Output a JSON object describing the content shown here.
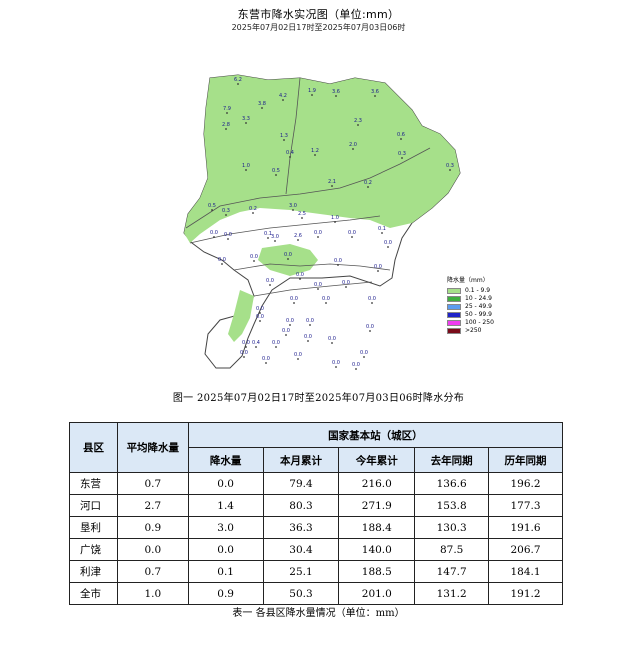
{
  "map": {
    "title": "东营市降水实况图（单位:mm）",
    "subtitle": "2025年07月02日17时至2025年07月03日06时",
    "legend_title": "降水量（mm）",
    "legend": [
      {
        "label": "0.1 - 9.9",
        "color": "#a6e08a"
      },
      {
        "label": "10 - 24.9",
        "color": "#3fae3f"
      },
      {
        "label": "25 - 49.9",
        "color": "#5d9cf0"
      },
      {
        "label": "50 - 99.9",
        "color": "#1f23c8"
      },
      {
        "label": "100 - 250",
        "color": "#f03cf0"
      },
      {
        "label": ">250",
        "color": "#7a0b1a"
      }
    ],
    "stations": [
      {
        "v": "6.2",
        "c": "#d62020"
      },
      {
        "v": "1.9"
      },
      {
        "v": "3.6"
      },
      {
        "v": "3.8"
      },
      {
        "v": "4.2",
        "c": "#d62020"
      },
      {
        "v": "3.6"
      },
      {
        "v": "7.9"
      },
      {
        "v": "3.3"
      },
      {
        "v": "2.8"
      },
      {
        "v": "2.3"
      },
      {
        "v": "0.6"
      },
      {
        "v": "1.3"
      },
      {
        "v": "2.0"
      },
      {
        "v": "0.4"
      },
      {
        "v": "1.2"
      },
      {
        "v": "0.3"
      },
      {
        "v": "1.0"
      },
      {
        "v": "0.5"
      },
      {
        "v": "2.1"
      },
      {
        "v": "0.2"
      },
      {
        "v": "0.3"
      },
      {
        "v": "0.5"
      },
      {
        "v": "0.3"
      },
      {
        "v": "0.2"
      },
      {
        "v": "3.0"
      },
      {
        "v": "2.5"
      },
      {
        "v": "1.0"
      },
      {
        "v": "0.0"
      },
      {
        "v": "0.0"
      },
      {
        "v": "0.1"
      },
      {
        "v": "0.0"
      },
      {
        "v": "0.0"
      },
      {
        "v": "0.1"
      },
      {
        "v": "3.0"
      },
      {
        "v": "2.6"
      },
      {
        "v": "0.0"
      },
      {
        "v": "0.0"
      },
      {
        "v": "0.0"
      },
      {
        "v": "0.0"
      },
      {
        "v": "0.0"
      },
      {
        "v": "0.0"
      },
      {
        "v": "0.0"
      },
      {
        "v": "0.0"
      },
      {
        "v": "0.0"
      },
      {
        "v": "0.0"
      },
      {
        "v": "0.0"
      },
      {
        "v": "0.0"
      },
      {
        "v": "0.0"
      },
      {
        "v": "0.0"
      },
      {
        "v": "0.0"
      },
      {
        "v": "0.0"
      },
      {
        "v": "0.0"
      },
      {
        "v": "0.0"
      },
      {
        "v": "0.4"
      },
      {
        "v": "0.0"
      },
      {
        "v": "0.0"
      },
      {
        "v": "0.0"
      },
      {
        "v": "0.0"
      },
      {
        "v": "0.0"
      },
      {
        "v": "0.0"
      },
      {
        "v": "0.0"
      },
      {
        "v": "0.0"
      },
      {
        "v": "0.0"
      },
      {
        "v": "0.0"
      },
      {
        "v": "0.0"
      }
    ]
  },
  "figure_caption": "图一 2025年07月02日17时至2025年07月03日06时降水分布",
  "table": {
    "headers": {
      "county": "县区",
      "avg": "平均降水量",
      "group": "国家基本站（城区）",
      "cols": [
        "降水量",
        "本月累计",
        "今年累计",
        "去年同期",
        "历年同期"
      ]
    },
    "rows": [
      [
        "东营",
        "0.7",
        "0.0",
        "79.4",
        "216.0",
        "136.6",
        "196.2"
      ],
      [
        "河口",
        "2.7",
        "1.4",
        "80.3",
        "271.9",
        "153.8",
        "177.3"
      ],
      [
        "垦利",
        "0.9",
        "3.0",
        "36.3",
        "188.4",
        "130.3",
        "191.6"
      ],
      [
        "广饶",
        "0.0",
        "0.0",
        "30.4",
        "140.0",
        "87.5",
        "206.7"
      ],
      [
        "利津",
        "0.7",
        "0.1",
        "25.1",
        "188.5",
        "147.7",
        "184.1"
      ],
      [
        "全市",
        "1.0",
        "0.9",
        "50.3",
        "201.0",
        "131.2",
        "191.2"
      ]
    ]
  },
  "table_caption": "表一 各县区降水量情况（单位：mm）"
}
